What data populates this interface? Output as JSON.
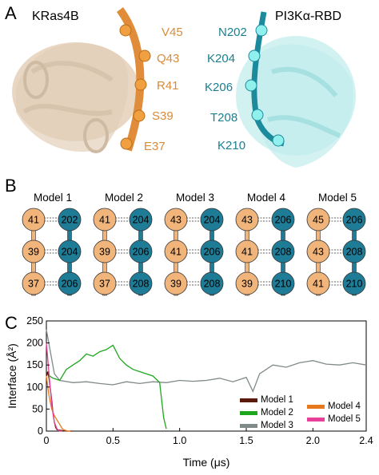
{
  "panels": {
    "a": "A",
    "b": "B",
    "c": "C"
  },
  "structure": {
    "kras": {
      "title": "KRas4B",
      "color": "#e8a85a",
      "residues": [
        "V45",
        "Q43",
        "R41",
        "S39",
        "E37"
      ]
    },
    "pi3k": {
      "title": "PI3Kα-RBD",
      "color": "#5ed8d8",
      "residues": [
        "N202",
        "K204",
        "K206",
        "T208",
        "K210"
      ]
    }
  },
  "models": [
    {
      "title": "Model 1",
      "kras": [
        "41",
        "39",
        "37"
      ],
      "rbd": [
        "202",
        "204",
        "206"
      ]
    },
    {
      "title": "Model 2",
      "kras": [
        "41",
        "39",
        "37"
      ],
      "rbd": [
        "204",
        "206",
        "208"
      ]
    },
    {
      "title": "Model 3",
      "kras": [
        "43",
        "41",
        "39"
      ],
      "rbd": [
        "204",
        "206",
        "208"
      ]
    },
    {
      "title": "Model 4",
      "kras": [
        "43",
        "41",
        "39"
      ],
      "rbd": [
        "206",
        "208",
        "210"
      ]
    },
    {
      "title": "Model 5",
      "kras": [
        "45",
        "43",
        "41"
      ],
      "rbd": [
        "206",
        "208",
        "210"
      ]
    }
  ],
  "bead_colors": {
    "kras": "#f1b57c",
    "rbd": "#1f7c97"
  },
  "chart_data": {
    "type": "line",
    "xlabel": "Time (μs)",
    "ylabel": "Interface (Å²)",
    "xlim": [
      0,
      2.4
    ],
    "ylim": [
      0,
      250
    ],
    "xticks": [
      "0",
      "0.5",
      "1.0",
      "1.5",
      "2.0",
      "2.4"
    ],
    "xtick_values": [
      0,
      0.5,
      1.0,
      1.5,
      2.0,
      2.4
    ],
    "yticks": [
      "0",
      "50",
      "100",
      "150",
      "200",
      "250"
    ],
    "ytick_values": [
      0,
      50,
      100,
      150,
      200,
      250
    ],
    "legend_position": "bottom-right",
    "series": [
      {
        "name": "Model 1",
        "color": "#5c1a0c",
        "points": [
          [
            0,
            125
          ],
          [
            0.01,
            135
          ],
          [
            0.02,
            120
          ],
          [
            0.03,
            95
          ],
          [
            0.04,
            70
          ],
          [
            0.05,
            40
          ],
          [
            0.06,
            20
          ],
          [
            0.07,
            8
          ],
          [
            0.08,
            3
          ],
          [
            0.1,
            2
          ],
          [
            0.15,
            0
          ],
          [
            0.2,
            0
          ]
        ]
      },
      {
        "name": "Model 2",
        "color": "#1ea71e",
        "points": [
          [
            0,
            130
          ],
          [
            0.05,
            120
          ],
          [
            0.1,
            115
          ],
          [
            0.15,
            140
          ],
          [
            0.2,
            150
          ],
          [
            0.25,
            160
          ],
          [
            0.3,
            175
          ],
          [
            0.35,
            170
          ],
          [
            0.4,
            180
          ],
          [
            0.45,
            185
          ],
          [
            0.5,
            195
          ],
          [
            0.55,
            165
          ],
          [
            0.6,
            150
          ],
          [
            0.65,
            140
          ],
          [
            0.7,
            135
          ],
          [
            0.75,
            130
          ],
          [
            0.8,
            125
          ],
          [
            0.85,
            110
          ],
          [
            0.88,
            30
          ],
          [
            0.9,
            5
          ]
        ]
      },
      {
        "name": "Model 3",
        "color": "#808b89",
        "points": [
          [
            0,
            230
          ],
          [
            0.03,
            180
          ],
          [
            0.06,
            130
          ],
          [
            0.1,
            115
          ],
          [
            0.2,
            110
          ],
          [
            0.3,
            112
          ],
          [
            0.4,
            108
          ],
          [
            0.5,
            105
          ],
          [
            0.6,
            112
          ],
          [
            0.7,
            108
          ],
          [
            0.8,
            112
          ],
          [
            0.9,
            110
          ],
          [
            1.0,
            115
          ],
          [
            1.1,
            113
          ],
          [
            1.2,
            115
          ],
          [
            1.3,
            120
          ],
          [
            1.4,
            112
          ],
          [
            1.5,
            122
          ],
          [
            1.55,
            90
          ],
          [
            1.6,
            130
          ],
          [
            1.7,
            150
          ],
          [
            1.8,
            145
          ],
          [
            1.9,
            155
          ],
          [
            2.0,
            160
          ],
          [
            2.1,
            152
          ],
          [
            2.2,
            150
          ],
          [
            2.3,
            155
          ],
          [
            2.4,
            150
          ]
        ]
      },
      {
        "name": "Model 4",
        "color": "#e8781e",
        "points": [
          [
            0,
            125
          ],
          [
            0.02,
            80
          ],
          [
            0.04,
            50
          ],
          [
            0.06,
            35
          ],
          [
            0.08,
            25
          ],
          [
            0.1,
            15
          ],
          [
            0.12,
            5
          ],
          [
            0.14,
            2
          ],
          [
            0.16,
            0
          ],
          [
            0.18,
            0
          ]
        ]
      },
      {
        "name": "Model 5",
        "color": "#e8409a",
        "points": [
          [
            0,
            200
          ],
          [
            0.02,
            130
          ],
          [
            0.04,
            60
          ],
          [
            0.06,
            20
          ],
          [
            0.08,
            5
          ],
          [
            0.1,
            0
          ],
          [
            0.12,
            0
          ]
        ]
      }
    ]
  }
}
